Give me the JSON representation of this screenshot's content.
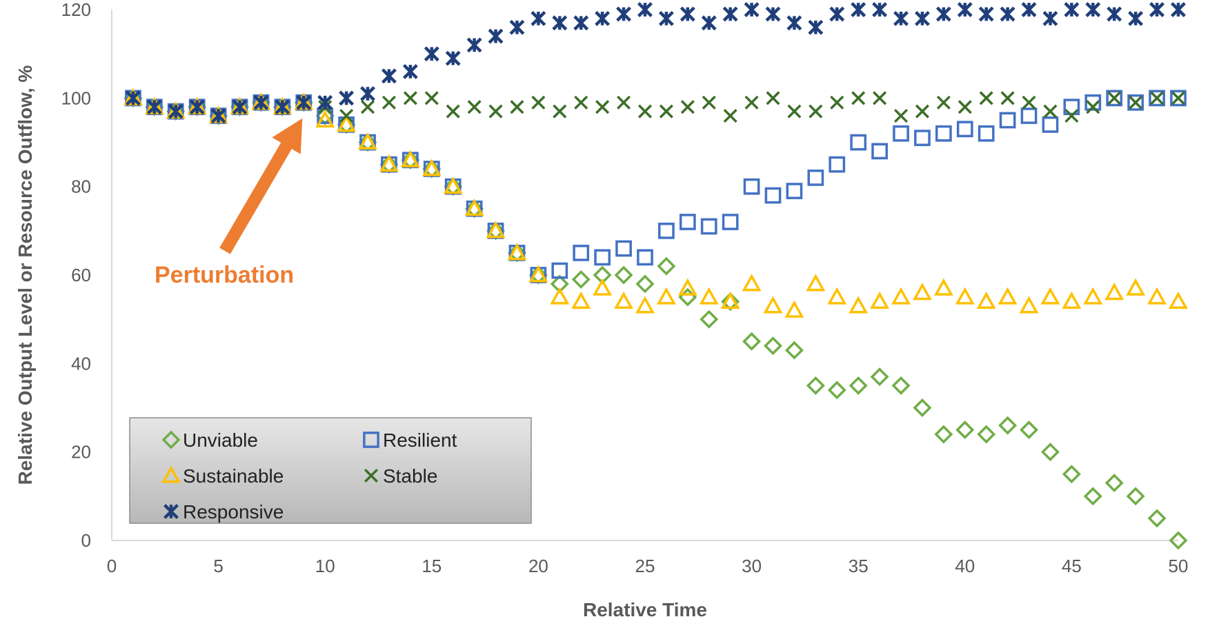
{
  "chart_data": {
    "type": "scatter",
    "xlabel": "Relative Time",
    "ylabel": "Relative Output Level or Resource Outflow, %",
    "xlim": [
      0,
      50
    ],
    "ylim": [
      0,
      120
    ],
    "xticks": [
      "0",
      "5",
      "10",
      "15",
      "20",
      "25",
      "30",
      "35",
      "40",
      "45",
      "50"
    ],
    "yticks": [
      "0",
      "20",
      "40",
      "60",
      "80",
      "100",
      "120"
    ],
    "grid": false,
    "legend_position": "bottom-left",
    "annotation": {
      "text": "Perturbation",
      "color": "#ED7D31",
      "points_to": [
        9,
        99
      ]
    },
    "series": [
      {
        "name": "Unviable",
        "marker": "diamond",
        "color": "#70AD47",
        "x": [
          1,
          2,
          3,
          4,
          5,
          6,
          7,
          8,
          9,
          10,
          11,
          12,
          13,
          14,
          15,
          16,
          17,
          18,
          19,
          20,
          21,
          22,
          23,
          24,
          25,
          26,
          27,
          28,
          29,
          30,
          31,
          32,
          33,
          34,
          35,
          36,
          37,
          38,
          39,
          40,
          41,
          42,
          43,
          44,
          45,
          46,
          47,
          48,
          49,
          50
        ],
        "y": [
          100,
          98,
          97,
          98,
          96,
          98,
          99,
          98,
          99,
          96,
          94,
          90,
          85,
          86,
          84,
          80,
          75,
          70,
          65,
          60,
          58,
          59,
          60,
          60,
          58,
          62,
          55,
          50,
          54,
          45,
          44,
          43,
          35,
          34,
          35,
          37,
          35,
          30,
          24,
          25,
          24,
          26,
          25,
          20,
          15,
          10,
          13,
          10,
          5,
          0
        ]
      },
      {
        "name": "Resilient",
        "marker": "square",
        "color": "#4472C4",
        "x": [
          1,
          2,
          3,
          4,
          5,
          6,
          7,
          8,
          9,
          10,
          11,
          12,
          13,
          14,
          15,
          16,
          17,
          18,
          19,
          20,
          21,
          22,
          23,
          24,
          25,
          26,
          27,
          28,
          29,
          30,
          31,
          32,
          33,
          34,
          35,
          36,
          37,
          38,
          39,
          40,
          41,
          42,
          43,
          44,
          45,
          46,
          47,
          48,
          49,
          50
        ],
        "y": [
          100,
          98,
          97,
          98,
          96,
          98,
          99,
          98,
          99,
          96,
          94,
          90,
          85,
          86,
          84,
          80,
          75,
          70,
          65,
          60,
          61,
          65,
          64,
          66,
          64,
          70,
          72,
          71,
          72,
          80,
          78,
          79,
          82,
          85,
          90,
          88,
          92,
          91,
          92,
          93,
          92,
          95,
          96,
          94,
          98,
          99,
          100,
          99,
          100,
          100
        ]
      },
      {
        "name": "Sustainable",
        "marker": "triangle",
        "color": "#FFC000",
        "x": [
          1,
          2,
          3,
          4,
          5,
          6,
          7,
          8,
          9,
          10,
          11,
          12,
          13,
          14,
          15,
          16,
          17,
          18,
          19,
          20,
          21,
          22,
          23,
          24,
          25,
          26,
          27,
          28,
          29,
          30,
          31,
          32,
          33,
          34,
          35,
          36,
          37,
          38,
          39,
          40,
          41,
          42,
          43,
          44,
          45,
          46,
          47,
          48,
          49,
          50
        ],
        "y": [
          100,
          98,
          97,
          98,
          96,
          98,
          99,
          98,
          99,
          95,
          94,
          90,
          85,
          86,
          84,
          80,
          75,
          70,
          65,
          60,
          55,
          54,
          57,
          54,
          53,
          55,
          57,
          55,
          54,
          58,
          53,
          52,
          58,
          55,
          53,
          54,
          55,
          56,
          57,
          55,
          54,
          55,
          53,
          55,
          54,
          55,
          56,
          57,
          55,
          54
        ]
      },
      {
        "name": "Stable",
        "marker": "x",
        "color": "#3C6E28",
        "x": [
          1,
          2,
          3,
          4,
          5,
          6,
          7,
          8,
          9,
          10,
          11,
          12,
          13,
          14,
          15,
          16,
          17,
          18,
          19,
          20,
          21,
          22,
          23,
          24,
          25,
          26,
          27,
          28,
          29,
          30,
          31,
          32,
          33,
          34,
          35,
          36,
          37,
          38,
          39,
          40,
          41,
          42,
          43,
          44,
          45,
          46,
          47,
          48,
          49,
          50
        ],
        "y": [
          100,
          98,
          97,
          98,
          96,
          98,
          99,
          98,
          99,
          98,
          96,
          98,
          99,
          100,
          100,
          97,
          98,
          97,
          98,
          99,
          97,
          99,
          98,
          99,
          97,
          97,
          98,
          99,
          96,
          99,
          100,
          97,
          97,
          99,
          100,
          100,
          96,
          97,
          99,
          98,
          100,
          100,
          99,
          97,
          96,
          98,
          100,
          99,
          100,
          100
        ]
      },
      {
        "name": "Responsive",
        "marker": "asterisk",
        "color": "#203F7A",
        "x": [
          1,
          2,
          3,
          4,
          5,
          6,
          7,
          8,
          9,
          10,
          11,
          12,
          13,
          14,
          15,
          16,
          17,
          18,
          19,
          20,
          21,
          22,
          23,
          24,
          25,
          26,
          27,
          28,
          29,
          30,
          31,
          32,
          33,
          34,
          35,
          36,
          37,
          38,
          39,
          40,
          41,
          42,
          43,
          44,
          45,
          46,
          47,
          48,
          49,
          50
        ],
        "y": [
          100,
          98,
          97,
          98,
          96,
          98,
          99,
          98,
          99,
          99,
          100,
          101,
          105,
          106,
          110,
          109,
          112,
          114,
          116,
          118,
          117,
          117,
          118,
          119,
          120,
          118,
          119,
          117,
          119,
          120,
          119,
          117,
          116,
          119,
          120,
          120,
          118,
          118,
          119,
          120,
          119,
          119,
          120,
          118,
          120,
          120,
          119,
          118,
          120,
          120
        ]
      }
    ],
    "legend_layout": [
      [
        "Unviable",
        "Resilient"
      ],
      [
        "Sustainable",
        "Stable"
      ],
      [
        "Responsive"
      ]
    ]
  }
}
